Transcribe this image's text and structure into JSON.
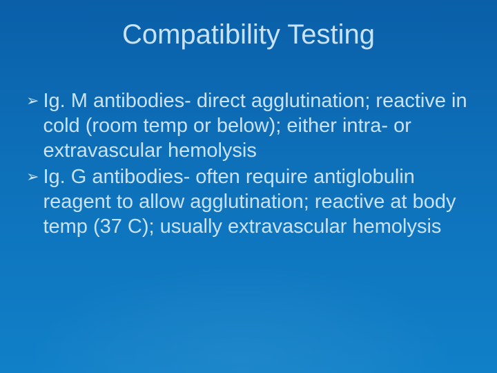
{
  "slide": {
    "title": "Compatibility Testing",
    "bullets": [
      {
        "marker": "➢",
        "text": "Ig. M antibodies- direct agglutination; reactive in cold (room temp or below); either intra- or extravascular hemolysis"
      },
      {
        "marker": "➢",
        "text": "Ig. G antibodies- often require antiglobulin reagent to allow agglutination; reactive at body temp (37 C); usually extravascular hemolysis"
      }
    ],
    "colors": {
      "background_top": "#0a5fa8",
      "background_bottom": "#1080c8",
      "text": "#c8e3f7"
    },
    "typography": {
      "title_fontsize": 40,
      "body_fontsize": 29,
      "font_family": "Arial"
    }
  }
}
